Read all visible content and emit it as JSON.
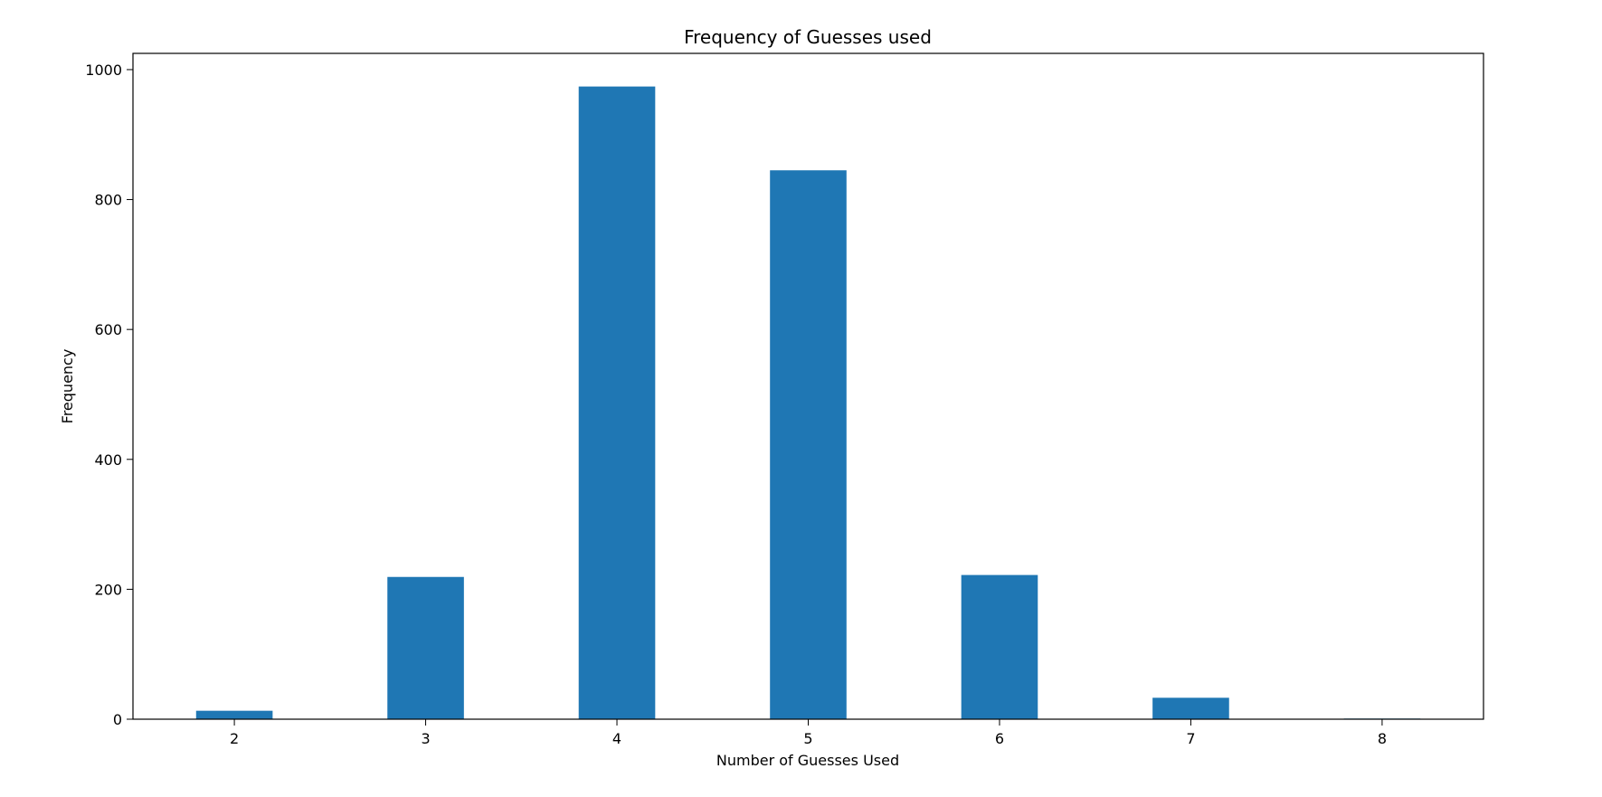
{
  "chart_data": {
    "type": "bar",
    "title": "Frequency of Guesses used",
    "xlabel": "Number of Guesses Used",
    "ylabel": "Frequency",
    "categories": [
      "2",
      "3",
      "4",
      "5",
      "6",
      "7",
      "8"
    ],
    "values": [
      13,
      219,
      974,
      845,
      222,
      33,
      1
    ],
    "ylim": [
      0,
      1025
    ],
    "yticks": [
      0,
      200,
      400,
      600,
      800,
      1000
    ],
    "grid": false,
    "legend": "none",
    "bar_color": "#1f77b4",
    "axis_color": "#000000"
  }
}
